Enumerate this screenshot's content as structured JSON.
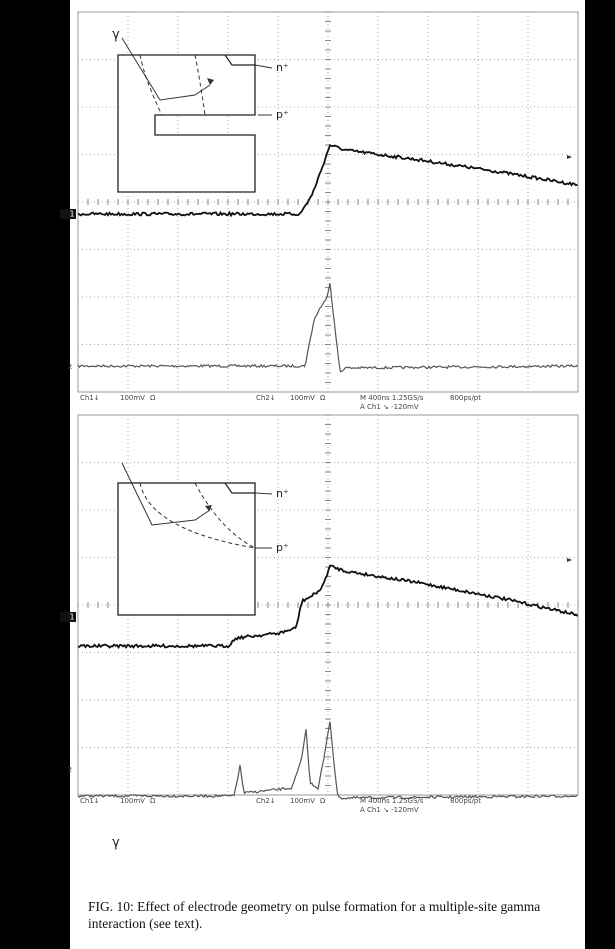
{
  "panels": [
    {
      "inset": {
        "gamma": "γ",
        "n_label": "n⁺",
        "p_label": "p⁺"
      },
      "channel_markers": [
        "1",
        "2"
      ],
      "footer": {
        "ch1": "Ch1↓",
        "ch1_scale": "100mV",
        "ch1_imp": "Ω",
        "ch2": "Ch2↓",
        "ch2_scale": "100mV",
        "ch2_imp": "Ω",
        "timebase": "M 400ns 1.25GS/s",
        "resolution": "800ps/pt",
        "trigger": "A Ch1 ↘ -120mV"
      }
    },
    {
      "inset": {
        "gamma": "γ",
        "n_label": "n⁺",
        "p_label": "p⁺"
      },
      "channel_markers": [
        "1",
        "2"
      ],
      "footer": {
        "ch1": "Ch1↓",
        "ch1_scale": "100mV",
        "ch1_imp": "Ω",
        "ch2": "Ch2↓",
        "ch2_scale": "100mV",
        "ch2_imp": "Ω",
        "timebase": "M 400ns 1.25GS/s",
        "resolution": "800ps/pt",
        "trigger": "A Ch1 ↘ -120mV"
      }
    }
  ],
  "caption": "FIG. 10: Effect of electrode geometry on pulse formation for a multiple-site gamma interaction (see text)."
}
